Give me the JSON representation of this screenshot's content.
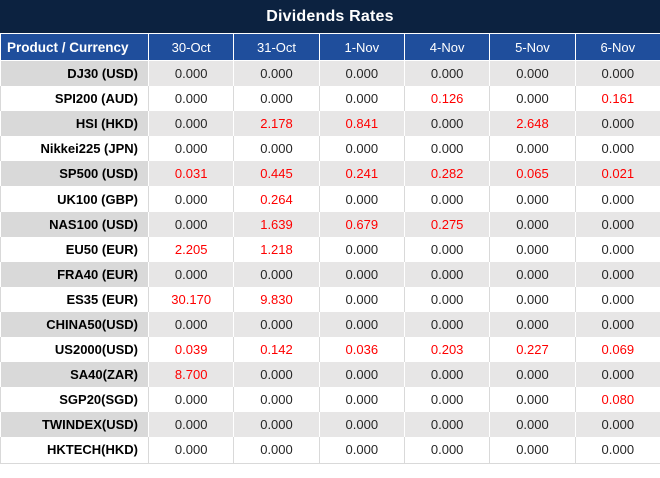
{
  "title": "Dividends Rates",
  "colors": {
    "title_bg": "#0C2240",
    "header_bg": "#1F4E9C",
    "header_text": "#FFFFFF",
    "shaded_row_bg": "#E7E6E6",
    "shaded_label_bg": "#D9D9D9",
    "value_text": "#262626",
    "highlight_red": "#FF0000"
  },
  "chart_data": {
    "type": "table",
    "title": "Dividends Rates",
    "columns": [
      "Product / Currency",
      "30-Oct",
      "31-Oct",
      "1-Nov",
      "4-Nov",
      "5-Nov",
      "6-Nov"
    ],
    "rows": [
      {
        "product": "DJ30 (USD)",
        "values": [
          "0.000",
          "0.000",
          "0.000",
          "0.000",
          "0.000",
          "0.000"
        ],
        "red": [
          false,
          false,
          false,
          false,
          false,
          false
        ]
      },
      {
        "product": "SPI200 (AUD)",
        "values": [
          "0.000",
          "0.000",
          "0.000",
          "0.126",
          "0.000",
          "0.161"
        ],
        "red": [
          false,
          false,
          false,
          true,
          false,
          true
        ]
      },
      {
        "product": "HSI (HKD)",
        "values": [
          "0.000",
          "2.178",
          "0.841",
          "0.000",
          "2.648",
          "0.000"
        ],
        "red": [
          false,
          true,
          true,
          false,
          true,
          false
        ]
      },
      {
        "product": "Nikkei225 (JPN)",
        "values": [
          "0.000",
          "0.000",
          "0.000",
          "0.000",
          "0.000",
          "0.000"
        ],
        "red": [
          false,
          false,
          false,
          false,
          false,
          false
        ]
      },
      {
        "product": "SP500 (USD)",
        "values": [
          "0.031",
          "0.445",
          "0.241",
          "0.282",
          "0.065",
          "0.021"
        ],
        "red": [
          true,
          true,
          true,
          true,
          true,
          true
        ]
      },
      {
        "product": "UK100 (GBP)",
        "values": [
          "0.000",
          "0.264",
          "0.000",
          "0.000",
          "0.000",
          "0.000"
        ],
        "red": [
          false,
          true,
          false,
          false,
          false,
          false
        ]
      },
      {
        "product": "NAS100 (USD)",
        "values": [
          "0.000",
          "1.639",
          "0.679",
          "0.275",
          "0.000",
          "0.000"
        ],
        "red": [
          false,
          true,
          true,
          true,
          false,
          false
        ]
      },
      {
        "product": "EU50 (EUR)",
        "values": [
          "2.205",
          "1.218",
          "0.000",
          "0.000",
          "0.000",
          "0.000"
        ],
        "red": [
          true,
          true,
          false,
          false,
          false,
          false
        ]
      },
      {
        "product": "FRA40 (EUR)",
        "values": [
          "0.000",
          "0.000",
          "0.000",
          "0.000",
          "0.000",
          "0.000"
        ],
        "red": [
          false,
          false,
          false,
          false,
          false,
          false
        ]
      },
      {
        "product": "ES35 (EUR)",
        "values": [
          "30.170",
          "9.830",
          "0.000",
          "0.000",
          "0.000",
          "0.000"
        ],
        "red": [
          true,
          true,
          false,
          false,
          false,
          false
        ]
      },
      {
        "product": "CHINA50(USD)",
        "values": [
          "0.000",
          "0.000",
          "0.000",
          "0.000",
          "0.000",
          "0.000"
        ],
        "red": [
          false,
          false,
          false,
          false,
          false,
          false
        ]
      },
      {
        "product": "US2000(USD)",
        "values": [
          "0.039",
          "0.142",
          "0.036",
          "0.203",
          "0.227",
          "0.069"
        ],
        "red": [
          true,
          true,
          true,
          true,
          true,
          true
        ]
      },
      {
        "product": "SA40(ZAR)",
        "values": [
          "8.700",
          "0.000",
          "0.000",
          "0.000",
          "0.000",
          "0.000"
        ],
        "red": [
          true,
          false,
          false,
          false,
          false,
          false
        ]
      },
      {
        "product": "SGP20(SGD)",
        "values": [
          "0.000",
          "0.000",
          "0.000",
          "0.000",
          "0.000",
          "0.080"
        ],
        "red": [
          false,
          false,
          false,
          false,
          false,
          true
        ]
      },
      {
        "product": "TWINDEX(USD)",
        "values": [
          "0.000",
          "0.000",
          "0.000",
          "0.000",
          "0.000",
          "0.000"
        ],
        "red": [
          false,
          false,
          false,
          false,
          false,
          false
        ]
      },
      {
        "product": "HKTECH(HKD)",
        "values": [
          "0.000",
          "0.000",
          "0.000",
          "0.000",
          "0.000",
          "0.000"
        ],
        "red": [
          false,
          false,
          false,
          false,
          false,
          false
        ]
      }
    ]
  }
}
